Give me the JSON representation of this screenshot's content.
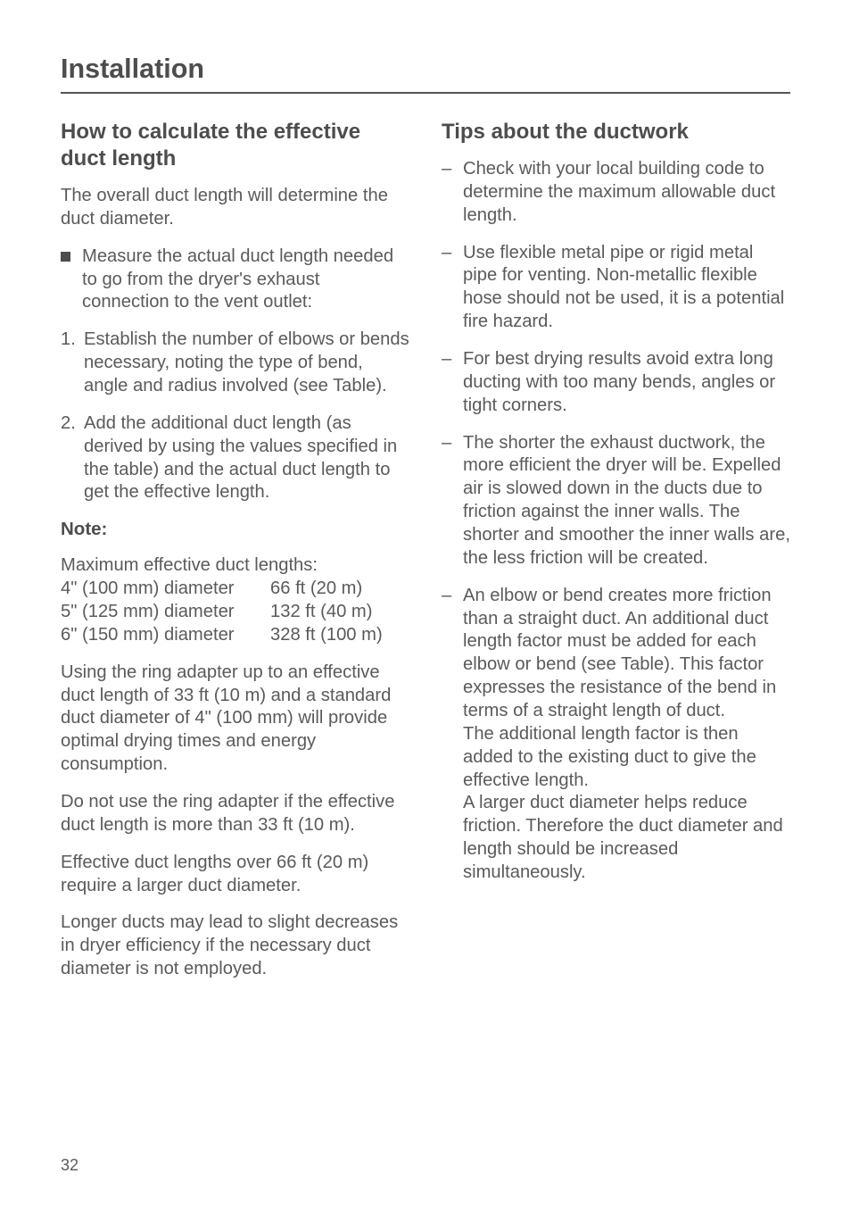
{
  "running_head": "Installation",
  "page_number": "32",
  "left": {
    "h2": "How to calculate the effective duct length",
    "intro": "The overall duct length will determine the duct diameter.",
    "square_bullet": "Measure the actual duct length needed to go from the dryer's exhaust connection to the vent outlet:",
    "steps": [
      {
        "n": "1.",
        "t": "Establish the number of elbows or bends necessary, noting the type of bend, angle and radius involved (see Table)."
      },
      {
        "n": "2.",
        "t": "Add the additional duct length (as derived by using the values specified in the table) and the actual duct length to get the effective length."
      }
    ],
    "note_label": "Note:",
    "note_intro": "Maximum effective duct lengths:",
    "specs": [
      {
        "l": "4\" (100 mm) diameter",
        "r": "66 ft (20 m)"
      },
      {
        "l": "5\" (125 mm) diameter",
        "r": "132 ft (40 m)"
      },
      {
        "l": "6\" (150 mm) diameter",
        "r": "328 ft (100 m)"
      }
    ],
    "paras": [
      "Using the ring adapter up to an effective duct length of 33 ft (10 m) and a standard duct diameter of 4\" (100 mm) will provide optimal drying times and energy consumption.",
      "Do not use the ring adapter if the effective duct length is more than 33 ft (10 m).",
      "Effective duct lengths over 66 ft (20 m) require a larger duct diameter.",
      "Longer ducts may lead to slight decreases in dryer efficiency if the necessary duct diameter is not employed."
    ]
  },
  "right": {
    "h2": "Tips about the ductwork",
    "items": [
      "Check with your local building code to determine the maximum allowable duct length.",
      "Use flexible metal pipe or rigid metal pipe for venting. Non-metallic flexible hose should not be used, it is a potential fire hazard.",
      "For best drying results avoid extra long ducting with too many bends, angles or tight corners.",
      "The shorter the exhaust ductwork, the more efficient the dryer will be. Expelled air is slowed down in the ducts due to friction against the inner walls. The shorter and smoother the inner walls are, the less friction will be created.",
      "An elbow or bend creates more friction than a straight duct. An additional duct length factor must be added for each elbow or bend (see Table). This factor expresses the resistance of the bend in terms of a straight length of duct.\nThe additional length factor is then added to the existing duct to give the effective length.\nA larger duct diameter helps reduce friction. Therefore the duct diameter and length should be increased simultaneously."
    ]
  }
}
